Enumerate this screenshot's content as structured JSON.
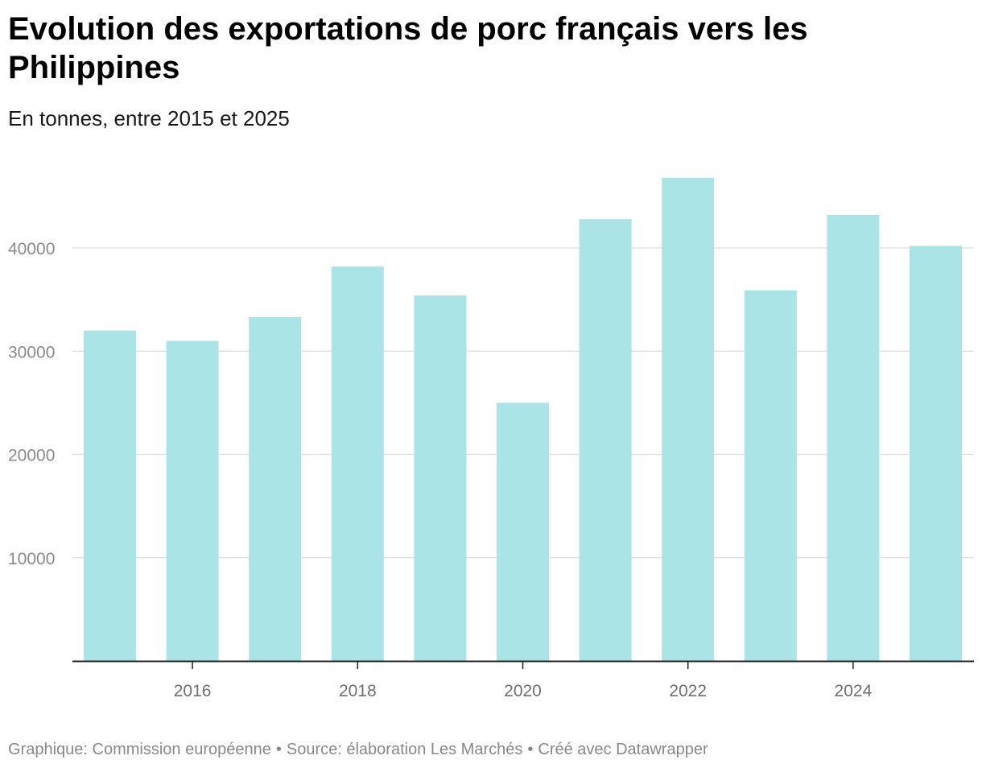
{
  "header": {
    "title": "Evolution des exportations de porc français vers les Philippines",
    "subtitle": "En tonnes, entre 2015 et 2025"
  },
  "footer": {
    "graphic": "Graphique: Commission européenne",
    "source": "Source: élaboration Les Marchés",
    "created": "Créé avec Datawrapper",
    "separator": "•"
  },
  "chart_data": {
    "type": "bar",
    "title": "Evolution des exportations de porc français vers les Philippines",
    "subtitle": "En tonnes, entre 2015 et 2025",
    "categories": [
      "2015",
      "2016",
      "2017",
      "2018",
      "2019",
      "2020",
      "2021",
      "2022",
      "2023",
      "2024",
      "2025"
    ],
    "values": [
      32000,
      31000,
      33300,
      38200,
      35400,
      25000,
      42800,
      46800,
      35900,
      43200,
      40200
    ],
    "ylim": [
      0,
      46800
    ],
    "yticks": [
      10000,
      20000,
      30000,
      40000
    ],
    "xticks": [
      "2016",
      "2018",
      "2020",
      "2022",
      "2024"
    ],
    "xlabel": "",
    "ylabel": "",
    "grid": true,
    "colors": {
      "bar": "#abe4e6",
      "grid": "#e3e3e3",
      "axis": "#222222",
      "tick_label": "#8a8a8a"
    }
  }
}
